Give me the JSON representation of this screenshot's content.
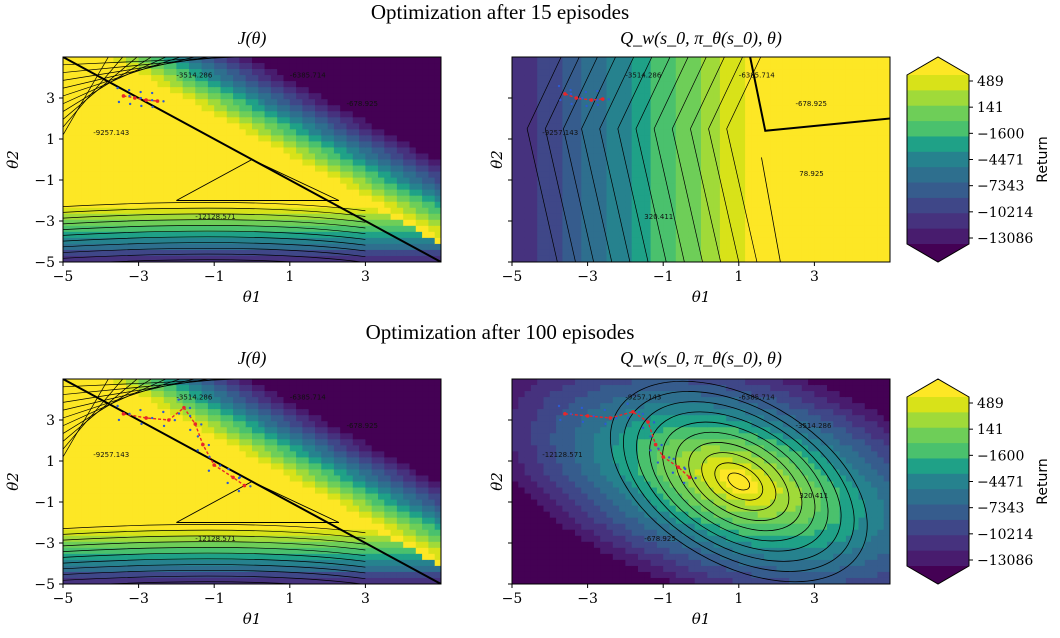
{
  "figure": {
    "row_titles": [
      "Optimization after 15 episodes",
      "Optimization after 100 episodes"
    ],
    "panel_titles": [
      "J(θ)",
      "Q_w(s_0, π_θ(s_0), θ)"
    ],
    "colorbar_label": "Return"
  },
  "chart_data": [
    {
      "type": "heatmap",
      "title": "J(θ)",
      "row_title": "Optimization after 15 episodes",
      "xlabel": "θ1",
      "ylabel": "θ2",
      "xlim": [
        -5,
        5
      ],
      "ylim": [
        -5,
        5
      ],
      "xticks": [
        "−5",
        "−3",
        "−1",
        "1",
        "3"
      ],
      "yticks": [
        "−5",
        "−3",
        "−1",
        "1",
        "3"
      ],
      "contour_labels": [
        "-9257.143",
        "-3514.286",
        "-6385.714",
        "-678.925",
        "-12128.571"
      ],
      "optimizer_path": [
        [
          -3.4,
          3.1
        ],
        [
          -3.1,
          3.0
        ],
        [
          -2.8,
          2.9
        ],
        [
          -2.5,
          2.85
        ]
      ]
    },
    {
      "type": "heatmap",
      "title": "Q_w(s_0, π_θ(s_0), θ)",
      "row_title": "Optimization after 15 episodes",
      "xlabel": "θ1",
      "ylabel": "θ2",
      "xlim": [
        -5,
        5
      ],
      "ylim": [
        -5,
        5
      ],
      "xticks": [
        "−5",
        "−3",
        "−1",
        "1",
        "3"
      ],
      "yticks": [],
      "contour_labels": [
        "-9257.143",
        "-3514.286",
        "-6385.714",
        "-678.925",
        "320.411",
        "78.925"
      ],
      "optimizer_path": [
        [
          -3.6,
          3.2
        ],
        [
          -3.3,
          3.0
        ],
        [
          -2.9,
          2.9
        ],
        [
          -2.6,
          2.95
        ]
      ]
    },
    {
      "type": "heatmap",
      "title": "J(θ)",
      "row_title": "Optimization after 100 episodes",
      "xlabel": "θ1",
      "ylabel": "θ2",
      "xlim": [
        -5,
        5
      ],
      "ylim": [
        -5,
        5
      ],
      "xticks": [
        "−5",
        "−3",
        "−1",
        "1",
        "3"
      ],
      "yticks": [
        "−5",
        "−3",
        "−1",
        "1",
        "3"
      ],
      "contour_labels": [
        "-9257.143",
        "-3514.286",
        "-6385.714",
        "-678.925",
        "-12128.571"
      ],
      "optimizer_path": [
        [
          -3.4,
          3.3
        ],
        [
          -2.8,
          3.1
        ],
        [
          -2.2,
          3.0
        ],
        [
          -1.8,
          3.6
        ],
        [
          -1.5,
          2.8
        ],
        [
          -1.3,
          1.8
        ],
        [
          -1.0,
          0.8
        ],
        [
          -0.5,
          0.2
        ],
        [
          -0.2,
          -0.2
        ]
      ]
    },
    {
      "type": "heatmap",
      "title": "Q_w(s_0, π_θ(s_0), θ)",
      "row_title": "Optimization after 100 episodes",
      "xlabel": "θ1",
      "ylabel": "θ2",
      "xlim": [
        -5,
        5
      ],
      "ylim": [
        -5,
        5
      ],
      "xticks": [
        "−5",
        "−3",
        "−1",
        "1",
        "3"
      ],
      "yticks": [],
      "contour_labels": [
        "-12128.571",
        "-9257.143",
        "-6385.714",
        "-3514.286",
        "-678.925",
        "320.411"
      ],
      "optimizer_path": [
        [
          -3.6,
          3.3
        ],
        [
          -3.0,
          3.2
        ],
        [
          -2.4,
          3.1
        ],
        [
          -1.8,
          3.4
        ],
        [
          -1.4,
          2.9
        ],
        [
          -1.2,
          1.8
        ],
        [
          -1.0,
          1.2
        ],
        [
          -0.6,
          0.7
        ],
        [
          -0.3,
          0.2
        ]
      ]
    }
  ],
  "colorbar": {
    "ticks": [
      "489",
      "141",
      "−1600",
      "−4471",
      "−7343",
      "−10214",
      "−13086"
    ],
    "colors": [
      "#fde725",
      "#d8e219",
      "#a0da39",
      "#6ece58",
      "#4ac16d",
      "#1fa187",
      "#26828e",
      "#2e6f8e",
      "#365c8d",
      "#3f4788",
      "#46327e",
      "#481c6e",
      "#440154"
    ]
  }
}
